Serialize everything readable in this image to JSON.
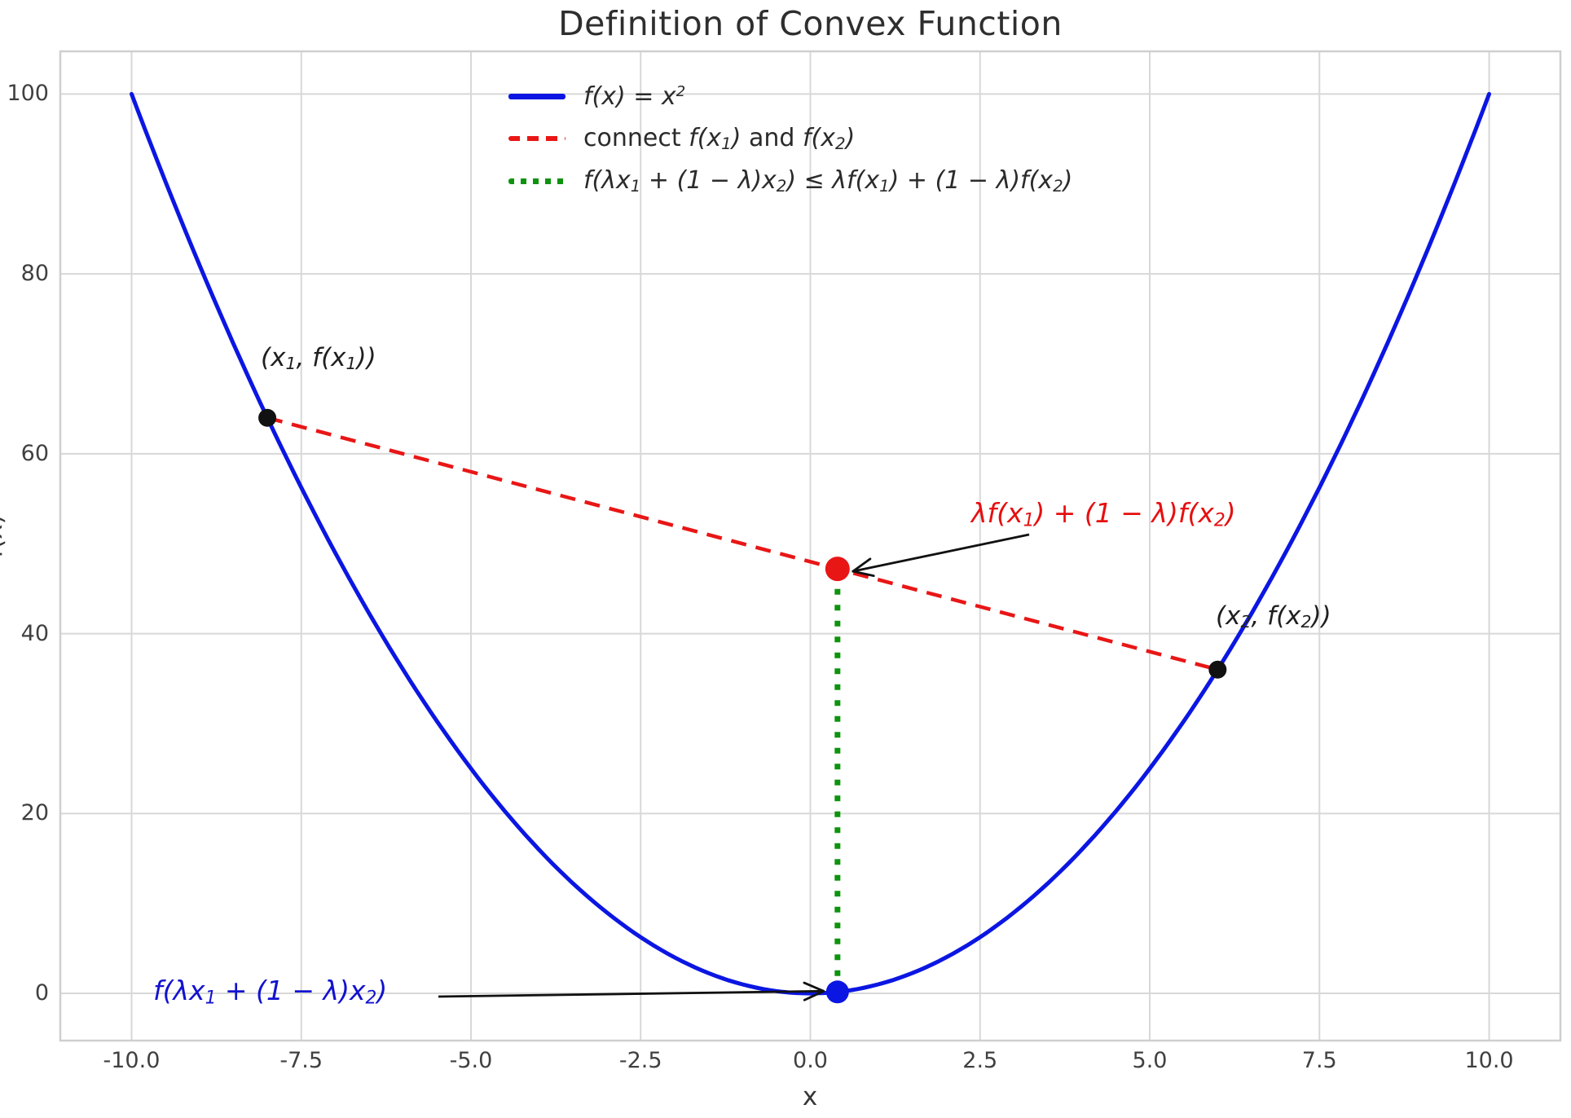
{
  "chart_data": {
    "type": "line",
    "title": "Definition of Convex Function",
    "xlabel": "x",
    "ylabel": "f(x)",
    "grid": true,
    "xlim": [
      -11.05,
      11.05
    ],
    "ylim": [
      -5.25,
      104.75
    ],
    "xticks": [
      -10.0,
      -7.5,
      -5.0,
      -2.5,
      0.0,
      2.5,
      5.0,
      7.5,
      10.0
    ],
    "xtick_labels": [
      "-10.0",
      "-7.5",
      "-5.0",
      "-2.5",
      "0.0",
      "2.5",
      "5.0",
      "7.5",
      "10.0"
    ],
    "yticks": [
      0,
      20,
      40,
      60,
      80,
      100
    ],
    "ytick_labels": [
      "0",
      "20",
      "40",
      "60",
      "80",
      "100"
    ],
    "lambda": 0.4,
    "curve": {
      "color": "#0b16e3",
      "x_min": -10,
      "x_max": 10,
      "power": 2,
      "width": 5
    },
    "chord": {
      "color": "#e91616",
      "x1": -8,
      "y1": 64,
      "x2": 6,
      "y2": 36,
      "style": "dashed"
    },
    "inequality_line": {
      "color": "#0e930e",
      "x": 0.4,
      "y_from": 0.16,
      "y_to": 47.2,
      "style": "dotted"
    },
    "points": [
      {
        "name": "point-x1",
        "x": -8,
        "y": 64,
        "color": "#111111",
        "r": 11
      },
      {
        "name": "point-x2",
        "x": 6,
        "y": 36,
        "color": "#111111",
        "r": 11
      },
      {
        "name": "point-chord",
        "x": 0.4,
        "y": 47.2,
        "color": "#e91616",
        "r": 15
      },
      {
        "name": "point-curve",
        "x": 0.4,
        "y": 0.16,
        "color": "#0b16e3",
        "r": 14
      }
    ],
    "legend": {
      "position": "upper center-left",
      "entries": [
        {
          "style": "solid",
          "color": "#0b16e3",
          "label": "f(x) = x²",
          "parts": [
            {
              "t": "f(x) = x",
              "i": true
            },
            {
              "t": "2",
              "i": true,
              "v": "sup"
            }
          ]
        },
        {
          "style": "dashed",
          "color": "#e91616",
          "label": "connect f(x₁) and f(x₂)",
          "parts": [
            {
              "t": "connect "
            },
            {
              "t": "f(x",
              "i": true
            },
            {
              "t": "1",
              "i": true,
              "v": "sub"
            },
            {
              "t": ")",
              "i": true
            },
            {
              "t": " and "
            },
            {
              "t": "f(x",
              "i": true
            },
            {
              "t": "2",
              "i": true,
              "v": "sub"
            },
            {
              "t": ")",
              "i": true
            }
          ]
        },
        {
          "style": "dotted",
          "color": "#0e930e",
          "label": "f(λx₁ + (1 − λ)x₂) ≤ λf(x₁) + (1 − λ)f(x₂)",
          "parts": [
            {
              "t": "f(λx",
              "i": true
            },
            {
              "t": "1",
              "i": true,
              "v": "sub"
            },
            {
              "t": " + (1 − λ)x",
              "i": true
            },
            {
              "t": "2",
              "i": true,
              "v": "sub"
            },
            {
              "t": ") ≤ λf(x",
              "i": true
            },
            {
              "t": "1",
              "i": true,
              "v": "sub"
            },
            {
              "t": ") + (1 − λ)f(x",
              "i": true
            },
            {
              "t": "2",
              "i": true,
              "v": "sub"
            },
            {
              "t": ")",
              "i": true
            }
          ]
        }
      ]
    },
    "point_labels": [
      {
        "text": "(x₁, f(x₁))",
        "parts": [
          {
            "t": "(x",
            "i": true
          },
          {
            "t": "1",
            "i": true,
            "v": "sub"
          },
          {
            "t": ", f(x",
            "i": true
          },
          {
            "t": "1",
            "i": true,
            "v": "sub"
          },
          {
            "t": "))",
            "i": true
          }
        ]
      },
      {
        "text": "(x₂, f(x₂))",
        "parts": [
          {
            "t": "(x",
            "i": true
          },
          {
            "t": "2",
            "i": true,
            "v": "sub"
          },
          {
            "t": ", f(x",
            "i": true
          },
          {
            "t": "2",
            "i": true,
            "v": "sub"
          },
          {
            "t": "))",
            "i": true
          }
        ]
      }
    ],
    "annotations": [
      {
        "text": "λf(x₁) + (1 − λ)f(x₂)",
        "color": "#e60f0f",
        "arrow_to": "point-chord",
        "parts": [
          {
            "t": "λf(x",
            "i": true
          },
          {
            "t": "1",
            "i": true,
            "v": "sub"
          },
          {
            "t": ") + (1 − λ)f(x",
            "i": true
          },
          {
            "t": "2",
            "i": true,
            "v": "sub"
          },
          {
            "t": ")",
            "i": true
          }
        ]
      },
      {
        "text": "f(λx₁ + (1 − λ)x₂)",
        "color": "#1212cf",
        "arrow_to": "point-curve",
        "parts": [
          {
            "t": "f(λx",
            "i": true
          },
          {
            "t": "1",
            "i": true,
            "v": "sub"
          },
          {
            "t": " + (1 − λ)x",
            "i": true
          },
          {
            "t": "2",
            "i": true,
            "v": "sub"
          },
          {
            "t": ")",
            "i": true
          }
        ]
      }
    ],
    "style": {
      "grid_color": "#d8d8d8",
      "border_color": "#cfcfcf",
      "arrow_color": "#111111"
    }
  }
}
